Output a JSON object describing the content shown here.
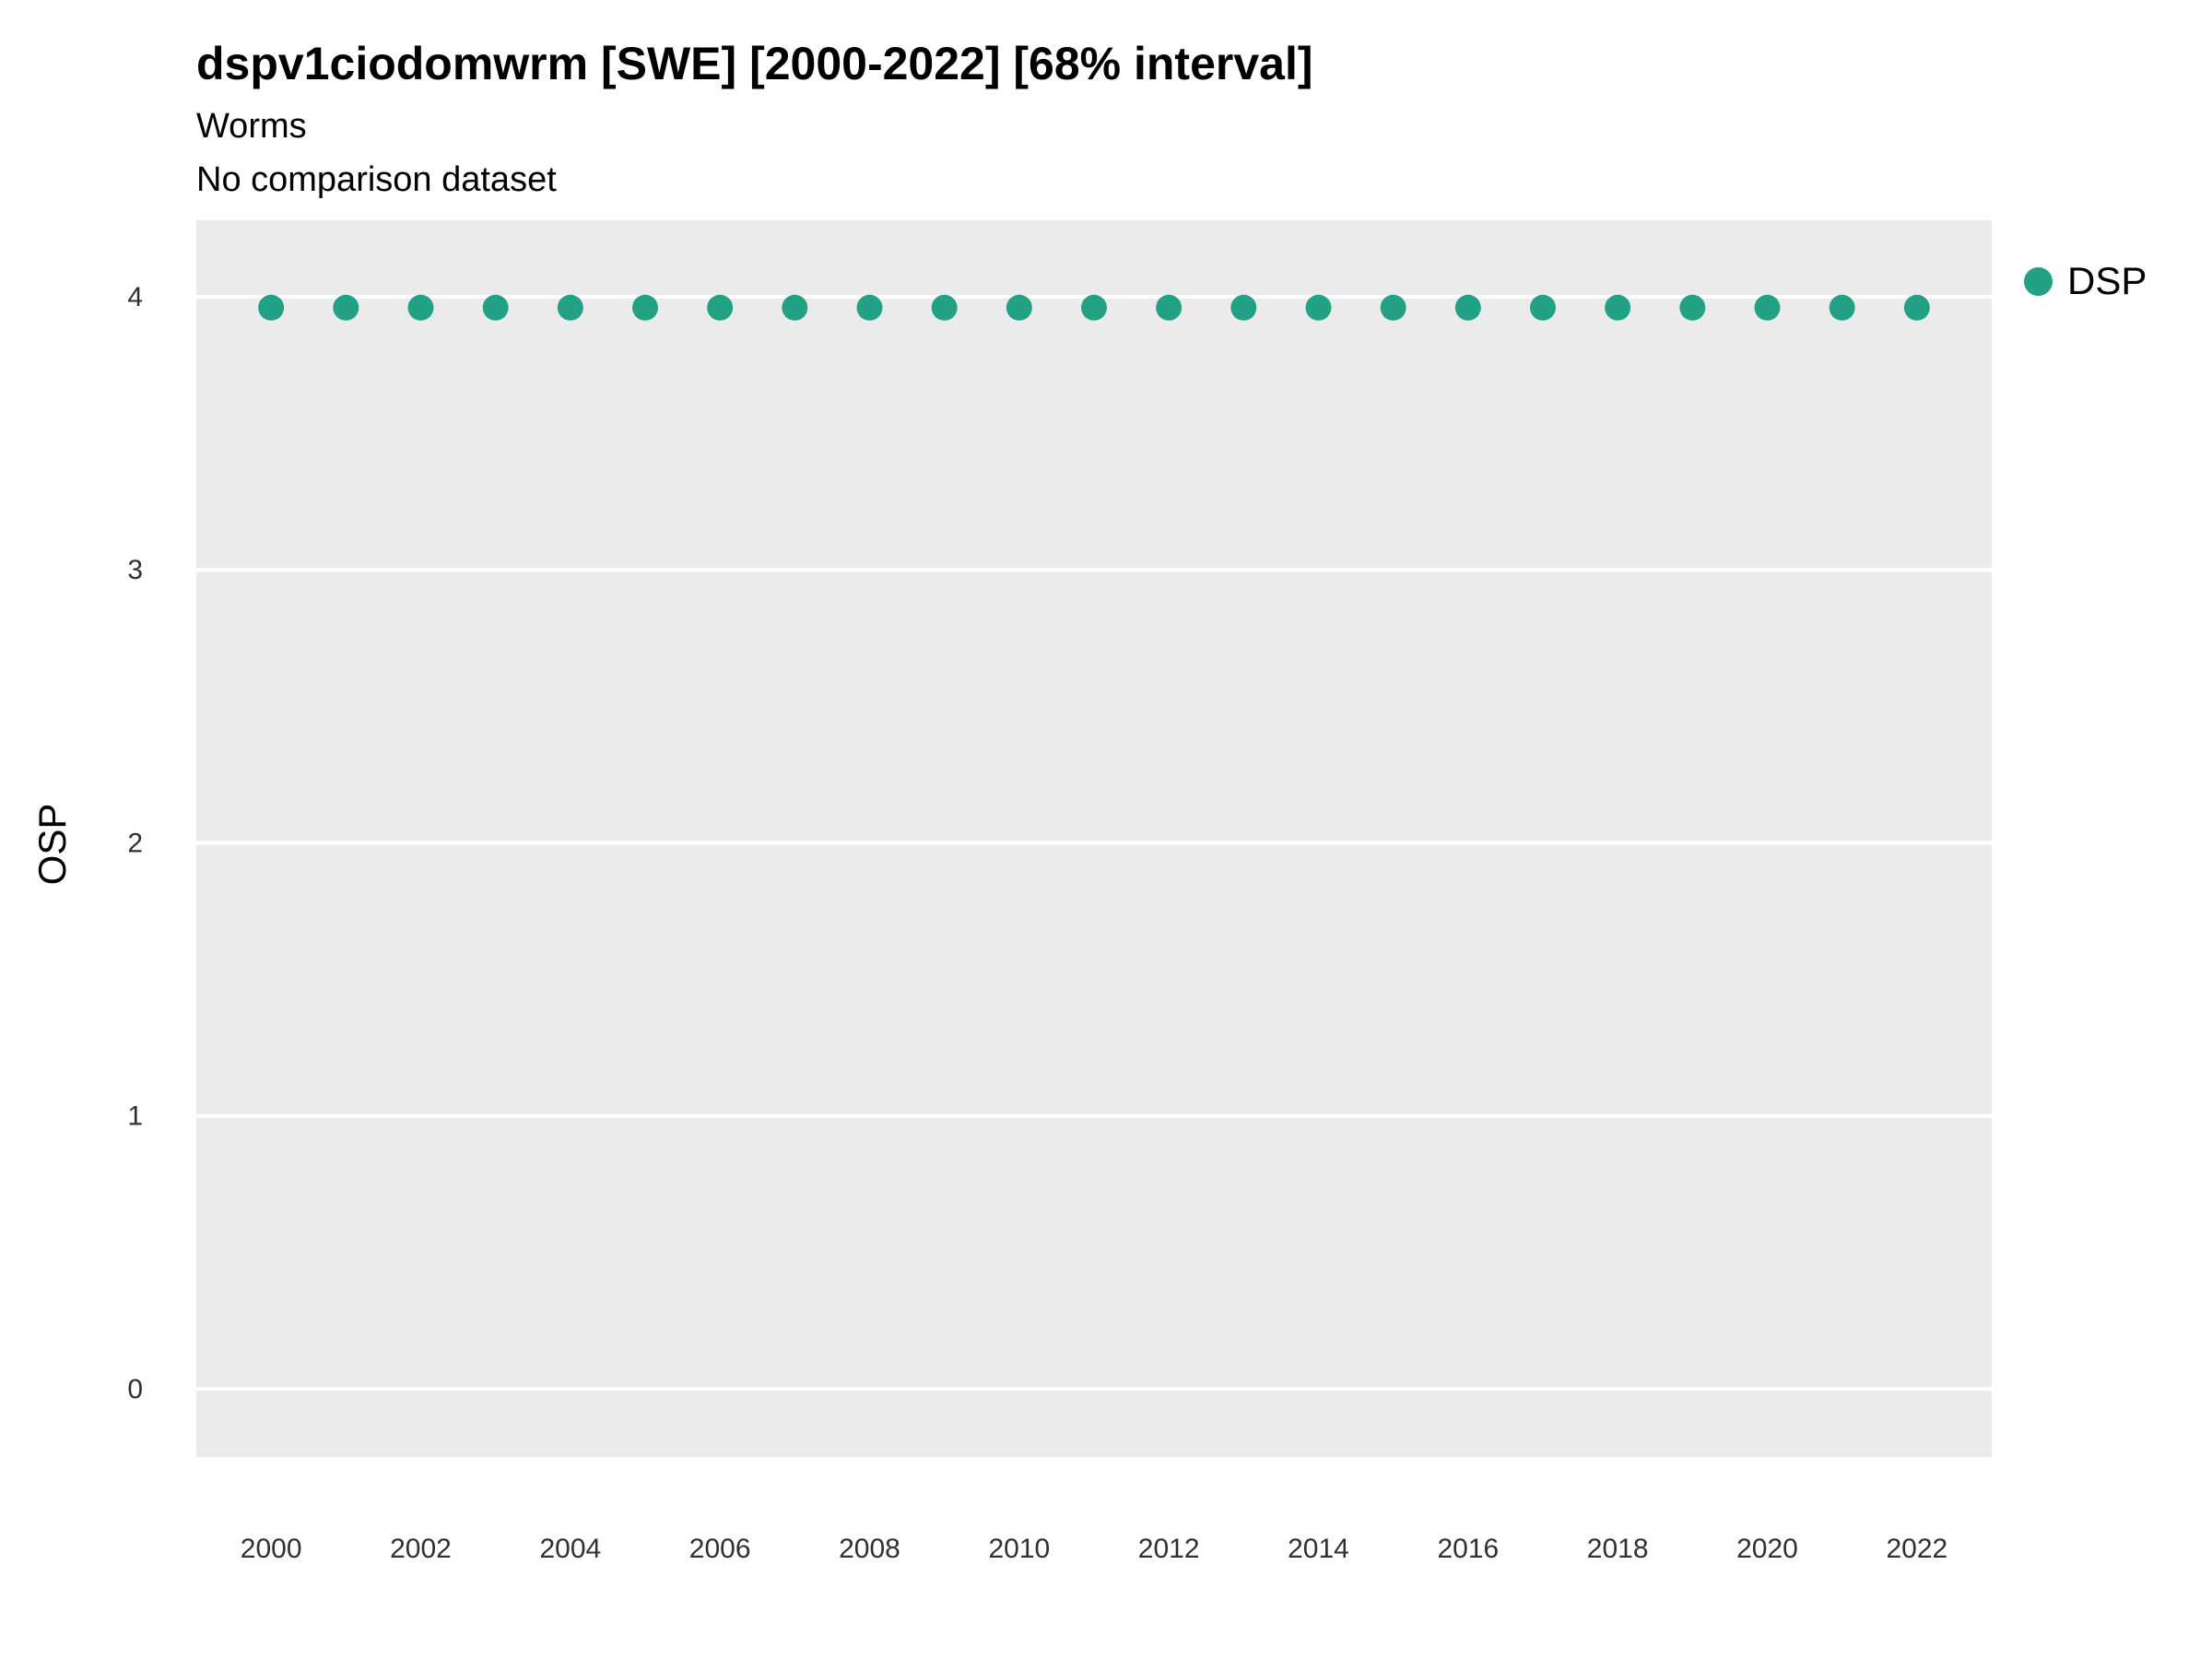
{
  "chart_data": {
    "type": "scatter",
    "title": "dspv1ciodomwrm [SWE] [2000-2022] [68% interval]",
    "subtitle": "Worms",
    "caption": "No comparison dataset",
    "xlabel": "",
    "ylabel": "OSP",
    "x": [
      2000,
      2001,
      2002,
      2003,
      2004,
      2005,
      2006,
      2007,
      2008,
      2009,
      2010,
      2011,
      2012,
      2013,
      2014,
      2015,
      2016,
      2017,
      2018,
      2019,
      2020,
      2021,
      2022
    ],
    "series": [
      {
        "name": "DSP",
        "values": [
          3.96,
          3.96,
          3.96,
          3.96,
          3.96,
          3.96,
          3.96,
          3.96,
          3.96,
          3.96,
          3.96,
          3.96,
          3.96,
          3.96,
          3.96,
          3.96,
          3.96,
          3.96,
          3.96,
          3.96,
          3.96,
          3.96,
          3.96
        ]
      }
    ],
    "xticks": [
      2000,
      2002,
      2004,
      2006,
      2008,
      2010,
      2012,
      2014,
      2016,
      2018,
      2020,
      2022
    ],
    "yticks": [
      0,
      1,
      2,
      3,
      4
    ],
    "xlim": [
      1999,
      2023
    ],
    "ylim": [
      -0.25,
      4.28
    ],
    "grid": "horizontal-major",
    "legend_position": "right-top",
    "point_color": "#23a184",
    "plot_bg": "#ebebeb",
    "grid_color": "#ffffff",
    "tick_text_color": "#303030"
  }
}
